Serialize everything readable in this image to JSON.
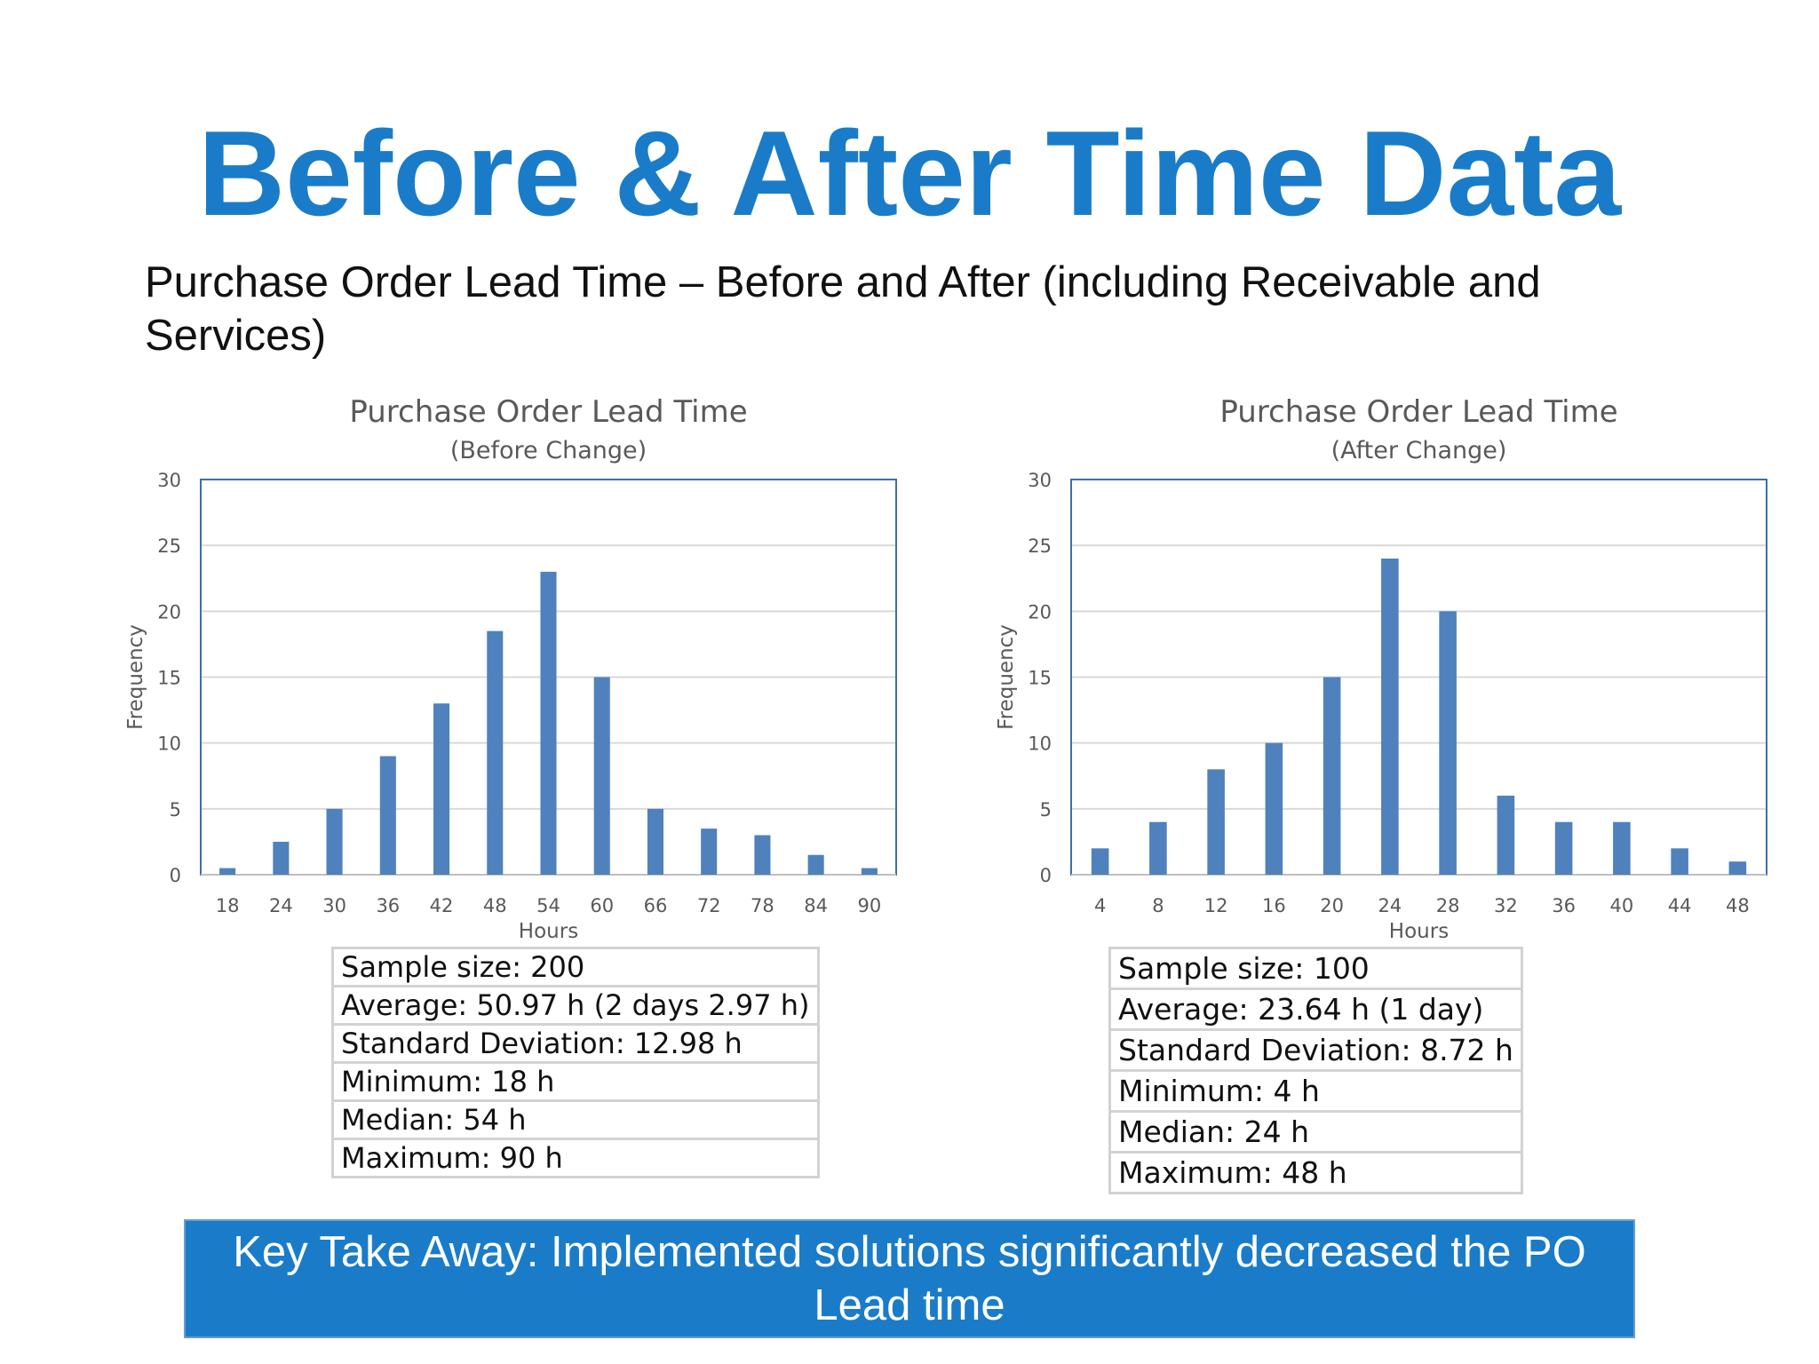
{
  "slide": {
    "title": "Before & After Time Data",
    "subtitle": "Purchase Order Lead Time – Before and After (including Receivable and Services)",
    "key_takeaway": "Key Take Away: Implemented solutions significantly decreased the PO Lead time"
  },
  "colors": {
    "title": "#1a7cc9",
    "bar": "#4f81bd",
    "banner_bg": "#1a7cc9",
    "banner_text": "#ffffff"
  },
  "chart_data": [
    {
      "type": "bar",
      "title": "Purchase Order Lead Time",
      "subtitle": "(Before Change)",
      "xlabel": "Hours",
      "ylabel": "Frequency",
      "categories": [
        "18",
        "24",
        "30",
        "36",
        "42",
        "48",
        "54",
        "60",
        "66",
        "72",
        "78",
        "84",
        "90"
      ],
      "values": [
        0.5,
        2.5,
        5,
        9,
        13,
        18.5,
        23,
        15,
        5,
        3.5,
        3,
        1.5,
        0.5
      ],
      "ylim": [
        0,
        30
      ],
      "yticks": [
        0,
        5,
        10,
        15,
        20,
        25,
        30
      ],
      "grid": true,
      "legend": "none"
    },
    {
      "type": "bar",
      "title": "Purchase Order Lead Time",
      "subtitle": "(After Change)",
      "xlabel": "Hours",
      "ylabel": "Frequency",
      "categories": [
        "4",
        "8",
        "12",
        "16",
        "20",
        "24",
        "28",
        "32",
        "36",
        "40",
        "44",
        "48"
      ],
      "values": [
        2,
        4,
        8,
        10,
        15,
        24,
        20,
        6,
        4,
        4,
        2,
        1
      ],
      "ylim": [
        0,
        30
      ],
      "yticks": [
        0,
        5,
        10,
        15,
        20,
        25,
        30
      ],
      "grid": true,
      "legend": "none"
    }
  ],
  "stats": {
    "before": [
      "Sample size: 200",
      "Average: 50.97 h (2 days 2.97 h)",
      "Standard Deviation: 12.98 h",
      "Minimum: 18 h",
      "Median: 54 h",
      "Maximum: 90 h"
    ],
    "after": [
      "Sample size: 100",
      "Average: 23.64 h (1 day)",
      "Standard Deviation: 8.72 h",
      "Minimum: 4 h",
      "Median: 24 h",
      "Maximum: 48 h"
    ]
  }
}
